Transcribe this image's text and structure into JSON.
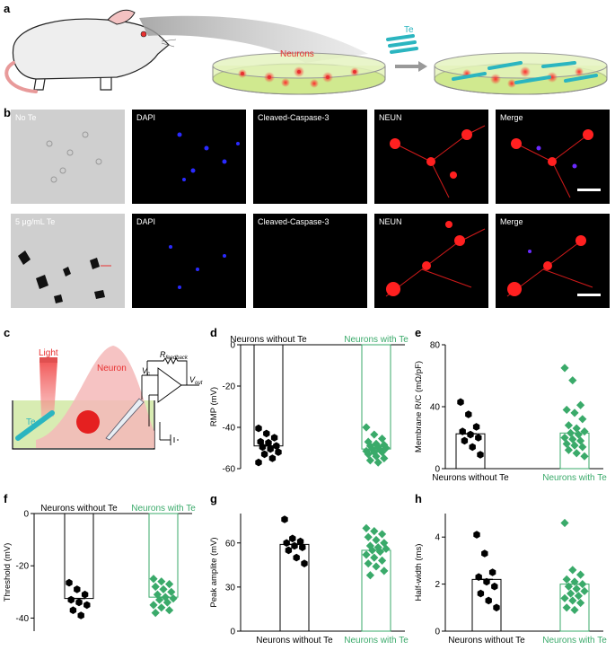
{
  "panel_labels": {
    "a": "a",
    "b": "b",
    "c": "c",
    "d": "d",
    "e": "e",
    "f": "f",
    "g": "g",
    "h": "h"
  },
  "panel_a": {
    "neurons_label": "Neurons",
    "te_label": "Te"
  },
  "panel_b": {
    "rows": [
      {
        "condition": "No Te",
        "channels": [
          "DAPI",
          "Cleaved-Caspase-3",
          "NEUN",
          "Merge"
        ]
      },
      {
        "condition": "5 μg/mL Te",
        "channels": [
          "DAPI",
          "Cleaved-Caspase-3",
          "NEUN",
          "Merge"
        ]
      }
    ]
  },
  "panel_c": {
    "light": "Light",
    "neuron": "Neuron",
    "te": "Te",
    "vc_main": "V",
    "vc_sub": "c",
    "rf_main": "R",
    "rf_sub": "feedback",
    "vout_main": "V",
    "vout_sub": "out"
  },
  "colors": {
    "without": "#000000",
    "with": "#3aaa6a",
    "te_cyan": "#2bb5c0",
    "red": "#e83030"
  },
  "chart_data": [
    {
      "id": "d",
      "type": "bar",
      "categories": [
        "Neurons without Te",
        "Neurons with Te"
      ],
      "values": [
        -49,
        -50.5
      ],
      "ylabel": "RMP (mV)",
      "ylim": [
        -60,
        0
      ],
      "yticks": [
        "0",
        "-20",
        "-40",
        "-60"
      ],
      "ytick_values": [
        0,
        -20,
        -40,
        -60
      ],
      "category_position": "top",
      "points": [
        [
          -40.5,
          -43,
          -45,
          -47,
          -47.5,
          -49,
          -49.5,
          -50.5,
          -52,
          -53,
          -55,
          -57
        ],
        [
          -40,
          -43.5,
          -45.5,
          -47,
          -48,
          -48.5,
          -49,
          -49.5,
          -50,
          -50.5,
          -51,
          -51.5,
          -52,
          -52,
          -53,
          -54,
          -55,
          -56,
          -57
        ]
      ]
    },
    {
      "id": "e",
      "type": "bar",
      "categories": [
        "Neurons without Te",
        "Neurons with Te"
      ],
      "values": [
        22.5,
        23
      ],
      "ylabel": "Membrane R/C (mΩ/pF)",
      "ylim": [
        0,
        80
      ],
      "yticks": [
        "0",
        "40",
        "80"
      ],
      "ytick_values": [
        0,
        40,
        80
      ],
      "category_position": "bottom",
      "points": [
        [
          43,
          35,
          27,
          24,
          22,
          20,
          18,
          14,
          9
        ],
        [
          65,
          57,
          41,
          38,
          36,
          32,
          28,
          26,
          24,
          23,
          22,
          20,
          19,
          18,
          16,
          15,
          14,
          12,
          10,
          8
        ]
      ]
    },
    {
      "id": "f",
      "type": "bar",
      "categories": [
        "Neurons without Te",
        "Neurons with Te"
      ],
      "values": [
        -32.5,
        -32
      ],
      "ylabel": "Threshold (mV)",
      "ylim": [
        -45,
        0
      ],
      "yticks": [
        "0",
        "-20",
        "-40"
      ],
      "ytick_values": [
        0,
        -20,
        -40
      ],
      "category_position": "top",
      "points": [
        [
          -26.5,
          -29,
          -31,
          -33,
          -34,
          -35,
          -37,
          -39
        ],
        [
          -25,
          -26,
          -27,
          -28,
          -29,
          -30,
          -31,
          -32,
          -32.5,
          -33,
          -34,
          -35,
          -36,
          -37,
          -38
        ]
      ]
    },
    {
      "id": "g",
      "type": "bar",
      "categories": [
        "Neurons without Te",
        "Neurons with Te"
      ],
      "values": [
        59,
        55
      ],
      "ylabel": "Peak amplite (mV)",
      "ylim": [
        0,
        80
      ],
      "yticks": [
        "0",
        "30",
        "60"
      ],
      "ytick_values": [
        0,
        30,
        60
      ],
      "category_position": "bottom",
      "points": [
        [
          76,
          63,
          61,
          60,
          58,
          57,
          55,
          50,
          46
        ],
        [
          70,
          68,
          66,
          64,
          62,
          60,
          58,
          57,
          56,
          55,
          54,
          52,
          50,
          48,
          46,
          44,
          41,
          38
        ]
      ]
    },
    {
      "id": "h",
      "type": "bar",
      "categories": [
        "Neurons without Te",
        "Neurons with Te"
      ],
      "values": [
        2.2,
        2.0
      ],
      "ylabel": "Half-width (ms)",
      "ylim": [
        0,
        5
      ],
      "yticks": [
        "0",
        "2",
        "4"
      ],
      "ytick_values": [
        0,
        2,
        4
      ],
      "category_position": "bottom",
      "points": [
        [
          4.1,
          3.3,
          2.5,
          2.3,
          2.1,
          1.9,
          1.6,
          1.3,
          1.0
        ],
        [
          4.6,
          2.6,
          2.4,
          2.2,
          2.1,
          2.0,
          1.9,
          1.8,
          1.7,
          1.6,
          1.5,
          1.4,
          1.3,
          1.2,
          1.0,
          0.9
        ]
      ]
    }
  ]
}
